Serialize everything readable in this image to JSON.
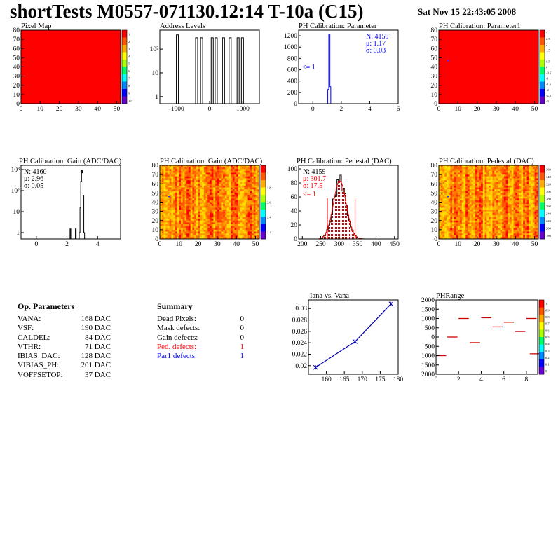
{
  "header": {
    "title": "shortTests M0557-071130.12:14 T-10a (C15)",
    "date": "Sat Nov 15 22:43:05 2008"
  },
  "chart_data": [
    {
      "id": "pixel-map",
      "type": "heatmap",
      "title": "Pixel Map",
      "xlim": [
        0,
        52
      ],
      "ylim": [
        0,
        80
      ],
      "xticks": [
        "0",
        "10",
        "20",
        "30",
        "40",
        "50"
      ],
      "yticks": [
        "0",
        "10",
        "20",
        "30",
        "40",
        "50",
        "60",
        "70",
        "80"
      ],
      "fill": "uniform",
      "fill_color": "#ff0000",
      "palette_ticks": [
        "1",
        "2",
        "3",
        "4",
        "5",
        "6",
        "7",
        "8",
        "9",
        "10"
      ]
    },
    {
      "id": "address-levels",
      "type": "bar",
      "title": "Address Levels",
      "log_y": true,
      "xlim": [
        -1500,
        1500
      ],
      "xticks": [
        "-1000",
        "0",
        "1000"
      ],
      "yticks": [
        "1",
        "10",
        "10²"
      ],
      "peaks": [
        -960,
        -380,
        -230,
        90,
        210,
        430,
        630,
        870,
        1000
      ],
      "peak_values": [
        400,
        300,
        300,
        300,
        300,
        300,
        300,
        300,
        300
      ]
    },
    {
      "id": "ph-calibration-parameter",
      "type": "bar",
      "title": "PH Calibration: Parameter",
      "xlim": [
        -1,
        6
      ],
      "ylim": [
        0,
        1300
      ],
      "xticks": [
        "0",
        "2",
        "4",
        "6"
      ],
      "yticks": [
        "0",
        "200",
        "400",
        "600",
        "800",
        "1000",
        "1200"
      ],
      "peak_x": 1.17,
      "peak_y": 1230,
      "stats": [
        "N: 4159",
        "μ: 1.17",
        "σ: 0.03"
      ],
      "annotation": "<= 1"
    },
    {
      "id": "ph-calibration-parameter1",
      "type": "heatmap",
      "title": "PH Calibration: Parameter1",
      "xlim": [
        0,
        52
      ],
      "ylim": [
        0,
        80
      ],
      "xticks": [
        "0",
        "10",
        "20",
        "30",
        "40",
        "50"
      ],
      "yticks": [
        "0",
        "10",
        "20",
        "30",
        "40",
        "50",
        "60",
        "70",
        "80"
      ],
      "fill": "uniform",
      "fill_color": "#ff0000",
      "palette_ticks": [
        "3",
        "2.5",
        "2",
        "1.5",
        "1",
        "0.5",
        "0",
        "-0.5",
        "-1",
        "-1.5",
        "-2",
        "-2.5",
        "-3"
      ]
    },
    {
      "id": "gain-histogram",
      "type": "bar",
      "title": "PH Calibration: Gain (ADC/DAC)",
      "log_y": true,
      "xlim": [
        -1,
        5.5
      ],
      "xticks": [
        "0",
        "2",
        "4"
      ],
      "yticks": [
        "1",
        "10",
        "10²",
        "10³"
      ],
      "peak_x": 2.96,
      "peak_y": 900,
      "stats": [
        "N: 4160",
        "μ: 2.96",
        "σ: 0.05"
      ]
    },
    {
      "id": "gain-map",
      "type": "heatmap",
      "title": "PH Calibration: Gain (ADC/DAC)",
      "xlim": [
        0,
        52
      ],
      "ylim": [
        0,
        80
      ],
      "xticks": [
        "0",
        "10",
        "20",
        "30",
        "40",
        "50"
      ],
      "yticks": [
        "0",
        "10",
        "20",
        "30",
        "40",
        "50",
        "60",
        "70",
        "80"
      ],
      "fill": "random",
      "palette_ticks": [
        "3",
        "2.8",
        "2.6",
        "2.4",
        "2.2"
      ]
    },
    {
      "id": "pedestal-histogram",
      "type": "bar",
      "title": "PH Calibration: Pedestal (DAC)",
      "xlim": [
        190,
        460
      ],
      "ylim": [
        0,
        105
      ],
      "xticks": [
        "200",
        "250",
        "300",
        "350",
        "400",
        "450"
      ],
      "yticks": [
        "0",
        "20",
        "40",
        "60",
        "80",
        "100"
      ],
      "mean": 301.7,
      "sigma": 17.5,
      "peak": 83,
      "stats": [
        "N: 4159",
        "μ: 301.7",
        "σ: 17.5"
      ],
      "annotation": "<= 1"
    },
    {
      "id": "pedestal-map",
      "type": "heatmap",
      "title": "PH Calibration: Pedestal (DAC)",
      "xlim": [
        0,
        52
      ],
      "ylim": [
        0,
        80
      ],
      "xticks": [
        "0",
        "10",
        "20",
        "30",
        "40",
        "50"
      ],
      "yticks": [
        "0",
        "10",
        "20",
        "30",
        "40",
        "50",
        "60",
        "70",
        "80"
      ],
      "fill": "random",
      "palette_ticks": [
        "360",
        "340",
        "320",
        "300",
        "280",
        "260",
        "240",
        "220",
        "200",
        "180"
      ]
    },
    {
      "id": "iana-vs-vana",
      "type": "line",
      "title": "Iana vs. Vana",
      "xlim": [
        155,
        180
      ],
      "ylim": [
        0.0185,
        0.0315
      ],
      "xticks": [
        "160",
        "165",
        "170",
        "175",
        "180"
      ],
      "yticks": [
        "0.02",
        "0.022",
        "0.024",
        "0.026",
        "0.028",
        "0.03"
      ],
      "x": [
        157,
        168,
        178
      ],
      "y": [
        0.0197,
        0.0242,
        0.0308
      ]
    },
    {
      "id": "ph-range",
      "type": "scatter",
      "title": "PHRange",
      "xlim": [
        0,
        9
      ],
      "ylim": [
        -2000,
        2000
      ],
      "xticks": [
        "0",
        "2",
        "4",
        "6",
        "8"
      ],
      "yticks": [
        "2000",
        "1500",
        "1000",
        "500",
        "0",
        "500",
        "1000",
        "1500",
        "2000"
      ],
      "segments": [
        [
          0,
          -1000
        ],
        [
          1,
          0
        ],
        [
          2,
          1000
        ],
        [
          3,
          -300
        ],
        [
          4,
          1040
        ],
        [
          5,
          550
        ],
        [
          6,
          800
        ],
        [
          7,
          300
        ],
        [
          8,
          1000
        ],
        [
          8.3,
          -900
        ]
      ],
      "palette_ticks": [
        "1",
        "0.9",
        "0.8",
        "0.7",
        "0.6",
        "0.5",
        "0.4",
        "0.3",
        "0.2",
        "0.1",
        "0"
      ]
    }
  ],
  "op_parameters": {
    "title": "Op. Parameters",
    "rows": [
      {
        "label": "VANA:",
        "value": "168 DAC"
      },
      {
        "label": "VSF:",
        "value": "190 DAC"
      },
      {
        "label": "CALDEL:",
        "value": "84 DAC"
      },
      {
        "label": "VTHR:",
        "value": "71 DAC"
      },
      {
        "label": "IBIAS_DAC:",
        "value": "128 DAC"
      },
      {
        "label": "VIBIAS_PH:",
        "value": "201 DAC"
      },
      {
        "label": "VOFFSETOP:",
        "value": "37 DAC"
      }
    ]
  },
  "summary": {
    "title": "Summary",
    "rows": [
      {
        "label": "Dead Pixels:",
        "value": "0",
        "color": "#000000"
      },
      {
        "label": "Mask defects:",
        "value": "0",
        "color": "#000000"
      },
      {
        "label": "Gain defects:",
        "value": "0",
        "color": "#000000"
      },
      {
        "label": "Ped. defects:",
        "value": "1",
        "color": "#ff0000"
      },
      {
        "label": "Par1 defects:",
        "value": "1",
        "color": "#0000ff"
      }
    ]
  },
  "colors": {
    "axis": "#000000",
    "stat_blue": "#0000ff",
    "stat_red": "#ff0000",
    "fit_red": "#ff0000",
    "line_blue": "#0000aa"
  }
}
